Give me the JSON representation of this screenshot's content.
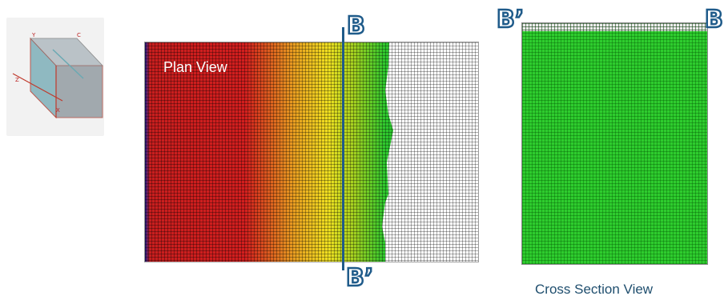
{
  "plan_view": {
    "label": "Plan View",
    "color_stops": [
      "#1a1a8c",
      "#c81e1e",
      "#d21e1e",
      "#e8a020",
      "#f0e020",
      "#a0d020",
      "#2ec82e",
      "#28b428"
    ]
  },
  "cross_section": {
    "caption": "Cross Section View",
    "fill_color": "#2ecc2e"
  },
  "section_markers": {
    "top": "B",
    "bottom": "B’",
    "xsec_left": "B’",
    "xsec_right": "B"
  },
  "thumbnail": {
    "axis_labels": [
      "Z",
      "X",
      "Y",
      "C"
    ]
  }
}
